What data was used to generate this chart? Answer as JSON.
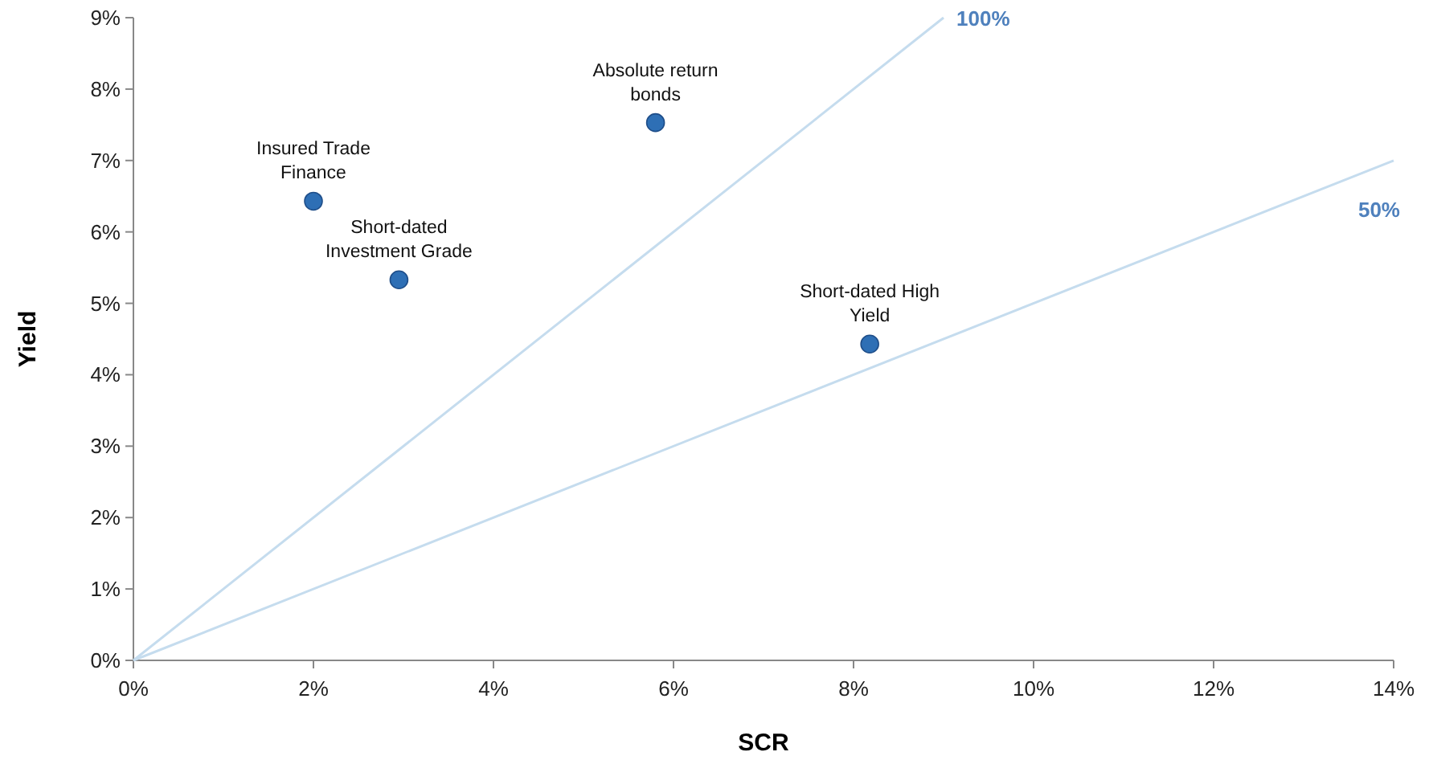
{
  "chart_data": {
    "type": "scatter",
    "xlabel": "SCR",
    "ylabel": "Yield",
    "xlim": [
      0,
      14
    ],
    "ylim": [
      0,
      9
    ],
    "xticks": [
      {
        "value": 0,
        "label": "0%"
      },
      {
        "value": 2,
        "label": "2%"
      },
      {
        "value": 4,
        "label": "4%"
      },
      {
        "value": 6,
        "label": "6%"
      },
      {
        "value": 8,
        "label": "8%"
      },
      {
        "value": 10,
        "label": "10%"
      },
      {
        "value": 12,
        "label": "12%"
      },
      {
        "value": 14,
        "label": "14%"
      }
    ],
    "yticks": [
      {
        "value": 0,
        "label": "0%"
      },
      {
        "value": 1,
        "label": "1%"
      },
      {
        "value": 2,
        "label": "2%"
      },
      {
        "value": 3,
        "label": "3%"
      },
      {
        "value": 4,
        "label": "4%"
      },
      {
        "value": 5,
        "label": "5%"
      },
      {
        "value": 6,
        "label": "6%"
      },
      {
        "value": 7,
        "label": "7%"
      },
      {
        "value": 8,
        "label": "8%"
      },
      {
        "value": 9,
        "label": "9%"
      }
    ],
    "grid": false,
    "series": [
      {
        "type": "line",
        "name": "100%",
        "color": "#c5dcee",
        "x": [
          0,
          9
        ],
        "values": [
          0,
          9
        ]
      },
      {
        "type": "line",
        "name": "50%",
        "color": "#c5dcee",
        "x": [
          0,
          14
        ],
        "values": [
          0,
          7
        ]
      },
      {
        "color": "#2e6fb5",
        "marker": "circle",
        "x": [
          2.0,
          2.95,
          5.8,
          8.18
        ],
        "values": [
          6.43,
          5.33,
          7.53,
          4.43
        ]
      }
    ],
    "annotations": [
      {
        "text": "Insured Trade Finance",
        "x": 2.0,
        "y": 6.43
      },
      {
        "text": "Short-dated Investment Grade",
        "x": 2.95,
        "y": 5.33
      },
      {
        "text": "Absolute return bonds",
        "x": 5.8,
        "y": 7.53
      },
      {
        "text": "Short-dated High Yield",
        "x": 8.18,
        "y": 4.43
      }
    ]
  }
}
